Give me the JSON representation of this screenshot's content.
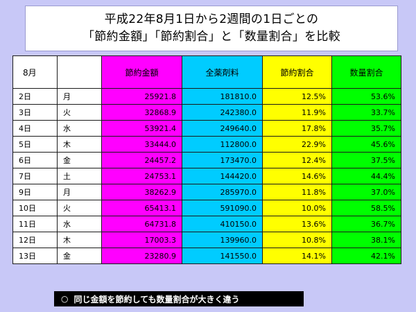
{
  "title": {
    "line1": "平成22年8月1日から2週間の1日ごとの",
    "line2": "「節約金額」「節約割合」と「数量割合」を比較"
  },
  "table": {
    "headers": {
      "month": "8月",
      "day": "",
      "savings": "節約金額",
      "total": "全薬剤料",
      "save_rate": "節約割合",
      "qty_rate": "数量割合"
    },
    "rows": [
      {
        "date": "2日",
        "day": "月",
        "savings": "25921.8",
        "total": "181810.0",
        "save_rate": "12.5%",
        "qty_rate": "53.6%"
      },
      {
        "date": "3日",
        "day": "火",
        "savings": "32868.9",
        "total": "242380.0",
        "save_rate": "11.9%",
        "qty_rate": "33.7%"
      },
      {
        "date": "4日",
        "day": "水",
        "savings": "53921.4",
        "total": "249640.0",
        "save_rate": "17.8%",
        "qty_rate": "35.7%"
      },
      {
        "date": "5日",
        "day": "木",
        "savings": "33444.0",
        "total": "112800.0",
        "save_rate": "22.9%",
        "qty_rate": "45.6%"
      },
      {
        "date": "6日",
        "day": "金",
        "savings": "24457.2",
        "total": "173470.0",
        "save_rate": "12.4%",
        "qty_rate": "37.5%"
      },
      {
        "date": "7日",
        "day": "土",
        "savings": "24753.1",
        "total": "144420.0",
        "save_rate": "14.6%",
        "qty_rate": "44.4%"
      },
      {
        "date": "9日",
        "day": "月",
        "savings": "38262.9",
        "total": "285970.0",
        "save_rate": "11.8%",
        "qty_rate": "37.0%"
      },
      {
        "date": "10日",
        "day": "火",
        "savings": "65413.1",
        "total": "591090.0",
        "save_rate": "10.0%",
        "qty_rate": "58.5%"
      },
      {
        "date": "11日",
        "day": "水",
        "savings": "64731.8",
        "total": "410150.0",
        "save_rate": "13.6%",
        "qty_rate": "36.7%"
      },
      {
        "date": "12日",
        "day": "木",
        "savings": "17003.3",
        "total": "139960.0",
        "save_rate": "10.8%",
        "qty_rate": "38.1%"
      },
      {
        "date": "13日",
        "day": "金",
        "savings": "23280.9",
        "total": "141550.0",
        "save_rate": "14.1%",
        "qty_rate": "42.1%"
      }
    ]
  },
  "note": {
    "marker": "○",
    "text": "同じ金額を節約しても数量割合が大きく違う"
  },
  "colors": {
    "background": "#c8c8f7",
    "savings": "#ff00ff",
    "total": "#00ccff",
    "save_rate": "#ffff00",
    "qty_rate": "#00ff00"
  }
}
